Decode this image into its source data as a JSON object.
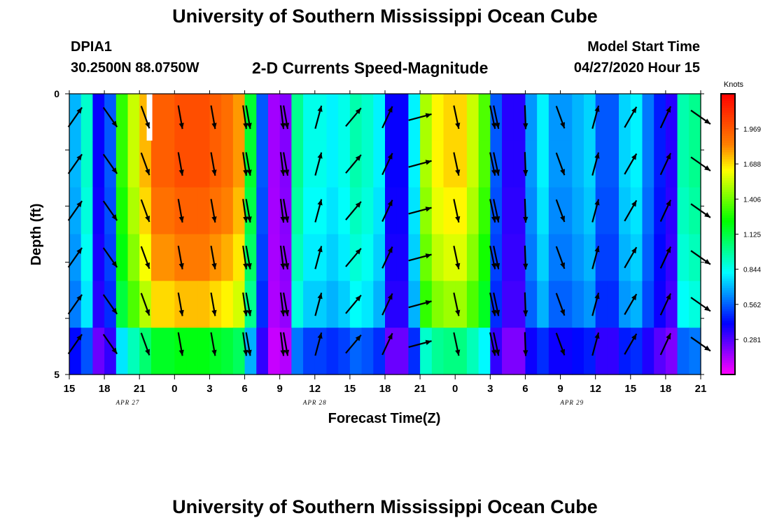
{
  "page": {
    "title_top": "University of Southern Mississippi Ocean Cube",
    "title_bottom": "University of Southern Mississippi Ocean Cube",
    "station": "DPIA1",
    "location": "30.2500N 88.0750W",
    "subtitle": "2-D Currents Speed-Magnitude",
    "model_label": "Model Start Time",
    "model_time": "04/27/2020 Hour 15"
  },
  "colors": {
    "scale": [
      "#ff00ff",
      "#8000ff",
      "#0000ff",
      "#0080ff",
      "#00ffff",
      "#00ff80",
      "#00ff00",
      "#80ff00",
      "#ffff00",
      "#ff8000",
      "#ff4000",
      "#ff0000"
    ]
  },
  "chart_data": {
    "type": "heatmap",
    "xlabel": "Forecast Time(Z)",
    "ylabel": "Depth (ft)",
    "x_range": [
      0,
      54
    ],
    "y_range": [
      0,
      5
    ],
    "x_ticks": [
      "15",
      "18",
      "21",
      "0",
      "3",
      "6",
      "9",
      "12",
      "15",
      "18",
      "21",
      "0",
      "3",
      "6",
      "9",
      "12",
      "15",
      "18",
      "21"
    ],
    "y_ticks": [
      "0",
      "5"
    ],
    "date_labels": [
      {
        "text": "APR 27",
        "hour": 5
      },
      {
        "text": "APR 28",
        "hour": 21
      },
      {
        "text": "APR 29",
        "hour": 43
      }
    ],
    "colorbar": {
      "title": "Knots",
      "min": 0,
      "max": 2.25,
      "labels": [
        "1.969",
        "1.688",
        "1.406",
        "1.125",
        "0.844",
        "0.562",
        "0.281"
      ],
      "label_values": [
        1.969,
        1.688,
        1.406,
        1.125,
        0.844,
        0.562,
        0.281
      ]
    },
    "depth_rows": [
      0,
      1,
      2,
      3,
      4,
      5
    ],
    "surface_profile": [
      0.7,
      0.9,
      0.4,
      0.55,
      1.3,
      1.55,
      1.75,
      1.95,
      1.95,
      2.0,
      2.0,
      2.0,
      1.95,
      1.9,
      1.8,
      1.15,
      0.55,
      0.15,
      0.2,
      1.0,
      0.85,
      0.85,
      0.8,
      0.85,
      0.95,
      0.9,
      0.8,
      0.4,
      0.4,
      0.8,
      1.5,
      1.65,
      1.7,
      1.7,
      1.55,
      1.35,
      0.55,
      0.35,
      0.35,
      0.65,
      0.8,
      0.65,
      0.65,
      0.7,
      0.75,
      0.55,
      0.55,
      0.75,
      0.8,
      0.6,
      0.45,
      0.35,
      0.95,
      1.0
    ],
    "depth_factor": [
      1.0,
      1.0,
      0.97,
      0.93,
      0.87,
      0.6
    ],
    "missing_cells": [
      {
        "hour": 6.8,
        "row": 0
      }
    ],
    "vector_rows": [
      0,
      1,
      2,
      3,
      4,
      5
    ],
    "vector_dirs": [
      {
        "hour": 0.5,
        "angle": 35
      },
      {
        "hour": 3.5,
        "angle": 145
      },
      {
        "hour": 6.5,
        "angle": 160
      },
      {
        "hour": 9.5,
        "angle": 170
      },
      {
        "hour": 12.3,
        "angle": 170
      },
      {
        "hour": 15,
        "angle": 172
      },
      {
        "hour": 15.3,
        "angle": 170
      },
      {
        "hour": 18.2,
        "angle": 173
      },
      {
        "hour": 18.5,
        "angle": 170
      },
      {
        "hour": 21.3,
        "angle": 15
      },
      {
        "hour": 24.3,
        "angle": 40
      },
      {
        "hour": 27.2,
        "angle": 25
      },
      {
        "hour": 30,
        "angle": 75
      },
      {
        "hour": 33.1,
        "angle": 168
      },
      {
        "hour": 36.2,
        "angle": 168
      },
      {
        "hour": 36.5,
        "angle": 168
      },
      {
        "hour": 39,
        "angle": 178
      },
      {
        "hour": 42,
        "angle": 160
      },
      {
        "hour": 45,
        "angle": 15
      },
      {
        "hour": 48,
        "angle": 30
      },
      {
        "hour": 51,
        "angle": 25
      },
      {
        "hour": 54,
        "angle": 125
      }
    ]
  }
}
